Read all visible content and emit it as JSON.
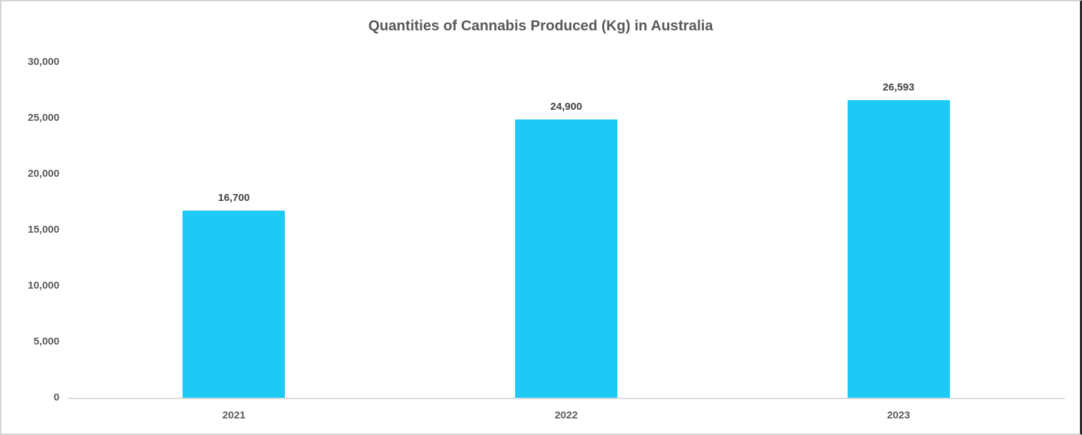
{
  "window": {
    "background": "#ffffff",
    "border_color": "#d2d2d2",
    "right_edge_color": "#262626"
  },
  "chart_data": {
    "type": "bar",
    "title": "Quantities of Cannabis Produced (Kg) in Australia",
    "categories": [
      "2021",
      "2022",
      "2023"
    ],
    "values": [
      16700,
      24900,
      26593
    ],
    "value_labels": [
      "16,700",
      "24,900",
      "26,593"
    ],
    "xlabel": "",
    "ylabel": "",
    "ylim": [
      0,
      30000
    ],
    "ytick_values": [
      0,
      5000,
      10000,
      15000,
      20000,
      25000,
      30000
    ],
    "ytick_labels": [
      "0",
      "5,000",
      "10,000",
      "15,000",
      "20,000",
      "25,000",
      "30,000"
    ],
    "grid": false,
    "legend": false,
    "bar_color": "#1ec9f5",
    "axis_line_color": "#d9d9d9",
    "title_color": "#595959",
    "tick_label_color": "#595959",
    "value_label_color": "#404040"
  }
}
